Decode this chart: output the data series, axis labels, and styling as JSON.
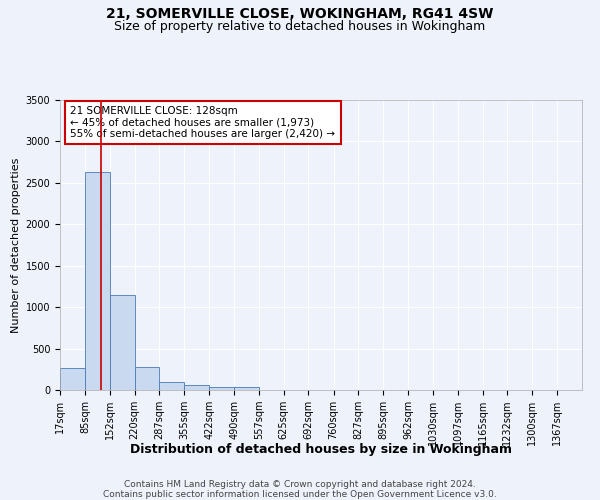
{
  "title": "21, SOMERVILLE CLOSE, WOKINGHAM, RG41 4SW",
  "subtitle": "Size of property relative to detached houses in Wokingham",
  "xlabel": "Distribution of detached houses by size in Wokingham",
  "ylabel": "Number of detached properties",
  "bin_edges": [
    17,
    85,
    152,
    220,
    287,
    355,
    422,
    490,
    557,
    625,
    692,
    760,
    827,
    895,
    962,
    1030,
    1097,
    1165,
    1232,
    1300,
    1367
  ],
  "bin_heights": [
    270,
    2630,
    1150,
    275,
    100,
    55,
    40,
    35,
    0,
    0,
    0,
    0,
    0,
    0,
    0,
    0,
    0,
    0,
    0,
    0
  ],
  "bar_color": "#c8d9f0",
  "bar_edge_color": "#4a7ab5",
  "property_size": 128,
  "property_line_color": "#cc0000",
  "annotation_text": "21 SOMERVILLE CLOSE: 128sqm\n← 45% of detached houses are smaller (1,973)\n55% of semi-detached houses are larger (2,420) →",
  "annotation_box_color": "#ffffff",
  "annotation_box_edge_color": "#cc0000",
  "ylim": [
    0,
    3500
  ],
  "yticks": [
    0,
    500,
    1000,
    1500,
    2000,
    2500,
    3000,
    3500
  ],
  "background_color": "#eef2fa",
  "grid_color": "#ffffff",
  "footer_line1": "Contains HM Land Registry data © Crown copyright and database right 2024.",
  "footer_line2": "Contains public sector information licensed under the Open Government Licence v3.0.",
  "title_fontsize": 10,
  "subtitle_fontsize": 9,
  "xlabel_fontsize": 9,
  "ylabel_fontsize": 8,
  "tick_fontsize": 7,
  "annotation_fontsize": 7.5,
  "footer_fontsize": 6.5
}
